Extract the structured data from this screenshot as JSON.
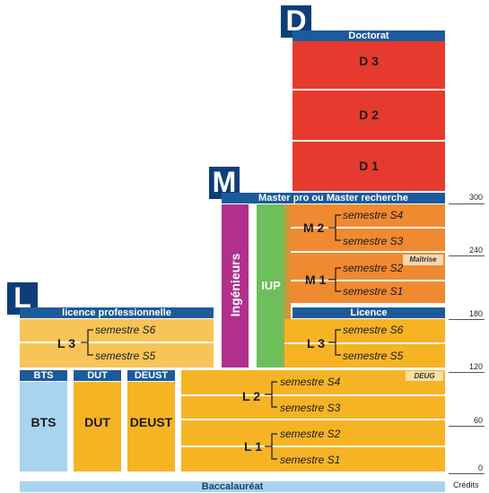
{
  "badges": {
    "doctorat": "D",
    "master": "M",
    "licence": "L"
  },
  "headers": {
    "doctorat": "Doctorat",
    "master": "Master pro ou Master recherche",
    "licence_pro": "licence professionnelle",
    "licence": "Licence",
    "bts": "BTS",
    "dut": "DUT",
    "deust": "DEUST",
    "bac": "Baccalauréat"
  },
  "doctorat_years": [
    "D 3",
    "D 2",
    "D 1"
  ],
  "master": {
    "m2": {
      "label": "M 2",
      "s_upper": "semestre S4",
      "s_lower": "semestre S3"
    },
    "m1": {
      "label": "M 1",
      "s_upper": "semestre S2",
      "s_lower": "semestre S1"
    },
    "maitrise": "Maîtrise",
    "ingenieurs": "Ingénieurs",
    "iup": "IUP"
  },
  "licence_pro": {
    "label": "L 3",
    "s_upper": "semestre S6",
    "s_lower": "semestre S5"
  },
  "licence": {
    "l3": {
      "label": "L 3",
      "s_upper": "semestre S6",
      "s_lower": "semestre S5"
    },
    "l2": {
      "label": "L 2",
      "s_upper": "semestre S4",
      "s_lower": "semestre S3"
    },
    "l1": {
      "label": "L 1",
      "s_upper": "semestre S2",
      "s_lower": "semestre S1"
    },
    "deug": "DEUG"
  },
  "short_programs": {
    "bts": "BTS",
    "dut": "DUT",
    "deust": "DEUST"
  },
  "credits": {
    "ticks": [
      "300",
      "240",
      "180",
      "120",
      "60",
      "0"
    ],
    "label": "Crédits"
  },
  "colors": {
    "header_blue": "#1c5b9b",
    "badge_blue": "#0d3e7a",
    "doctorat_red": "#e63a2e",
    "master_orange": "#f08a30",
    "licence_yellow": "#f6b324",
    "bts_blue": "#a8d4ef",
    "ingenieurs_purple": "#b0308c",
    "iup_green": "#6cbf5a"
  }
}
